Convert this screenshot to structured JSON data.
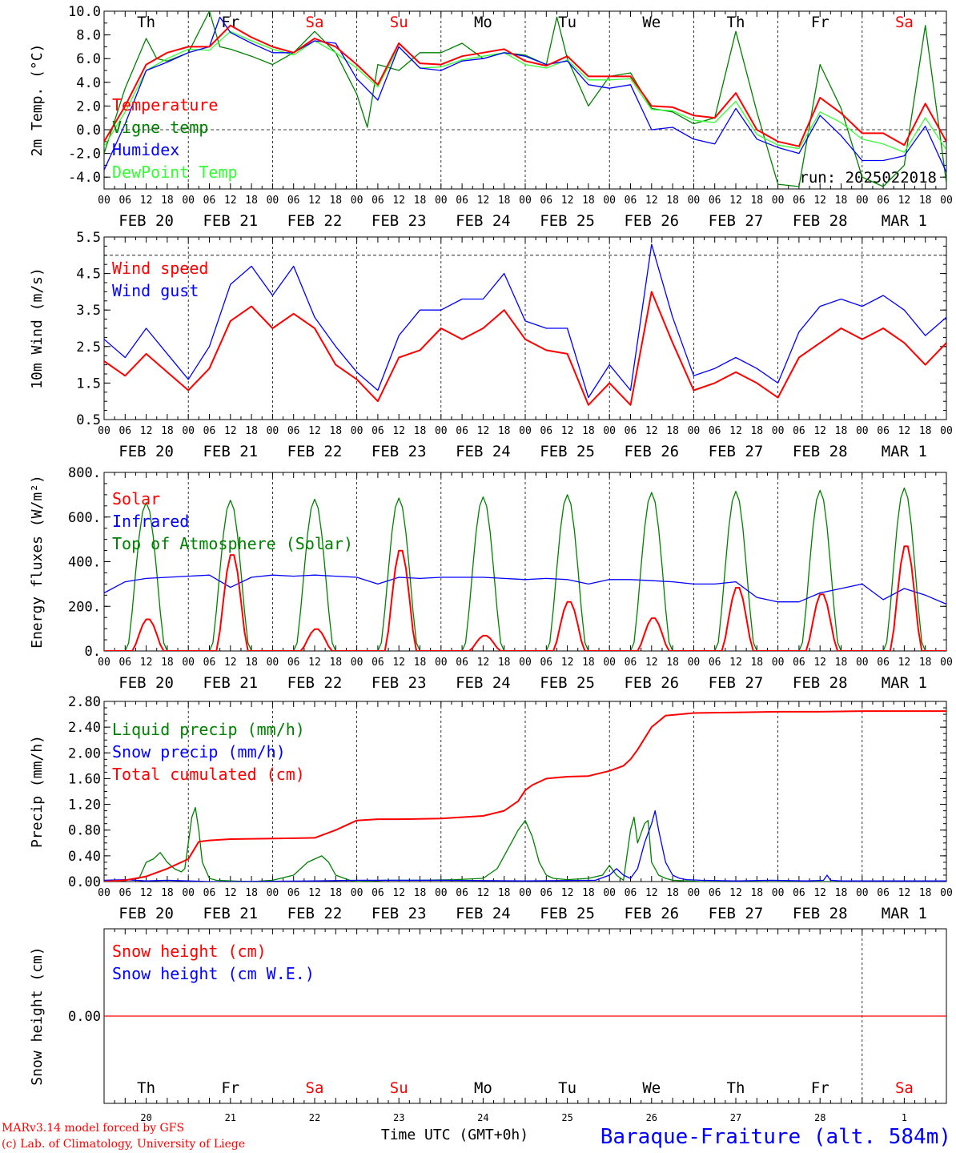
{
  "x_axis": {
    "hour_labels": [
      "00",
      "06",
      "12",
      "18"
    ],
    "final_hour_label": "00",
    "date_labels": [
      "FEB 20",
      "FEB 21",
      "FEB 22",
      "FEB 23",
      "FEB 24",
      "FEB 25",
      "FEB 26",
      "FEB 27",
      "FEB 28",
      "MAR  1"
    ],
    "weekday_labels": [
      "Th",
      "Fr",
      "Sa",
      "Su",
      "Mo",
      "Tu",
      "We",
      "Th",
      "Fr",
      "Sa"
    ],
    "weekend_flags": [
      false,
      false,
      true,
      true,
      false,
      false,
      false,
      false,
      false,
      true
    ],
    "day_numbers": [
      "20",
      "21",
      "22",
      "23",
      "24",
      "25",
      "26",
      "27",
      "28",
      "1"
    ],
    "title": "Time UTC (GMT+0h)"
  },
  "footer": {
    "model_credit": "MARv3.14 model forced by GFS",
    "lab_credit": "(c) Lab. of Climatology, University of Liege",
    "station_title": "Baraque-Fraiture (alt. 584m)"
  },
  "colors": {
    "red": "#ff0000",
    "green": "#008000",
    "blue": "#0000ff",
    "lightgreen": "#33ff33",
    "weekend": "#ff0000"
  },
  "chart_data": [
    {
      "type": "line",
      "ylabel": "2m Temp. (°C)",
      "ylim": [
        -5,
        10
      ],
      "yticks": [
        "10.0",
        "8.0",
        "6.0",
        "4.0",
        "2.0",
        "0.0",
        "-2.0",
        "-4.0"
      ],
      "ytick_values": [
        10,
        8,
        6,
        4,
        2,
        0,
        -2,
        -4
      ],
      "annotation": "run: 2025022018",
      "x_unit": "hours since FEB 20 00 UTC",
      "series": [
        {
          "name": "Temperature",
          "color": "red",
          "x": [
            0,
            6,
            12,
            18,
            24,
            30,
            36,
            42,
            48,
            54,
            60,
            66,
            72,
            78,
            84,
            90,
            96,
            102,
            108,
            114,
            120,
            126,
            132,
            138,
            144,
            150,
            156,
            162,
            168,
            174,
            180,
            186,
            192,
            198,
            204,
            210,
            216,
            222,
            228,
            234,
            240
          ],
          "y": [
            -1,
            2,
            5.5,
            6.5,
            7,
            7,
            8.8,
            7.8,
            7,
            6.5,
            7.7,
            7,
            5.5,
            3.8,
            7.3,
            5.6,
            5.5,
            6.2,
            6.5,
            6.8,
            5.8,
            5.4,
            6.2,
            4.5,
            4.5,
            4.5,
            2,
            1.9,
            1.2,
            1.0,
            3.1,
            0,
            -1,
            -1.4,
            2.7,
            1.4,
            -0.3,
            -0.3,
            -1.3,
            2.2,
            -1
          ]
        },
        {
          "name": "Vigne temp",
          "color": "green",
          "x": [
            0,
            6,
            12,
            15,
            18,
            24,
            30,
            33,
            36,
            42,
            48,
            54,
            60,
            66,
            72,
            75,
            78,
            84,
            90,
            96,
            102,
            108,
            114,
            120,
            126,
            129,
            132,
            138,
            144,
            150,
            156,
            162,
            168,
            174,
            180,
            186,
            192,
            198,
            204,
            210,
            216,
            222,
            228,
            234,
            240
          ],
          "y": [
            -2,
            3.5,
            7.7,
            6,
            5.8,
            6.5,
            10,
            7,
            6.8,
            6.2,
            5.5,
            6.5,
            8.3,
            6.5,
            3,
            0.2,
            5.5,
            5,
            6.5,
            6.5,
            7.3,
            6,
            6.5,
            6.3,
            5.5,
            9.5,
            6,
            2,
            4.5,
            4.8,
            1.8,
            1.5,
            0.5,
            1,
            8.3,
            1.5,
            -4.6,
            -4.8,
            5.5,
            1.8,
            -4,
            -4.8,
            -3,
            8.8,
            -4.5
          ]
        },
        {
          "name": "Humidex",
          "color": "blue",
          "x": [
            0,
            6,
            12,
            18,
            24,
            30,
            33,
            36,
            42,
            48,
            54,
            60,
            66,
            72,
            78,
            84,
            90,
            96,
            102,
            108,
            114,
            120,
            126,
            132,
            138,
            144,
            150,
            156,
            162,
            168,
            174,
            180,
            186,
            192,
            198,
            204,
            210,
            216,
            222,
            228,
            234,
            240
          ],
          "y": [
            -3.4,
            0.5,
            5,
            5.7,
            6.5,
            7,
            9.5,
            8.2,
            7.3,
            6.5,
            6.5,
            7.5,
            7.3,
            4.3,
            2.5,
            7,
            5.2,
            5,
            5.8,
            6,
            6.5,
            6.2,
            5.5,
            5.8,
            3.8,
            3.5,
            3.8,
            0,
            0.2,
            -0.8,
            -1.2,
            1.8,
            -0.8,
            -1.5,
            -2,
            1.2,
            -0.5,
            -2.6,
            -2.6,
            -2.2,
            0.3,
            -3.6
          ]
        },
        {
          "name": "DewPoint Temp",
          "color": "lightgreen",
          "x": [
            0,
            6,
            12,
            18,
            24,
            30,
            36,
            42,
            48,
            54,
            60,
            66,
            72,
            78,
            84,
            90,
            96,
            102,
            108,
            114,
            120,
            126,
            132,
            138,
            144,
            150,
            156,
            162,
            168,
            174,
            180,
            186,
            192,
            198,
            204,
            210,
            216,
            222,
            228,
            234,
            240
          ],
          "y": [
            -1.4,
            1.5,
            5,
            6,
            6.8,
            6.7,
            8.3,
            7.5,
            6.8,
            6.3,
            7.5,
            6.5,
            5.2,
            3.6,
            7,
            5.2,
            5.3,
            5.9,
            6.2,
            6.5,
            5.5,
            5.2,
            5.9,
            4.2,
            4.2,
            4.3,
            1.7,
            1.6,
            0.8,
            0.6,
            2.4,
            -0.4,
            -1.3,
            -1.6,
            1.5,
            0.6,
            -0.8,
            -1.2,
            -1.9,
            1.0,
            -1.7
          ]
        }
      ]
    },
    {
      "type": "line",
      "ylabel": "10m Wind (m/s)",
      "ylim": [
        0.5,
        5.5
      ],
      "yticks": [
        "5.5",
        "4.5",
        "3.5",
        "2.5",
        "1.5",
        "0.5"
      ],
      "ytick_values": [
        5.5,
        4.5,
        3.5,
        2.5,
        1.5,
        0.5
      ],
      "dashed_line_y": 5.0,
      "series": [
        {
          "name": "Wind speed",
          "color": "red",
          "x": [
            0,
            6,
            12,
            18,
            24,
            30,
            36,
            42,
            48,
            54,
            60,
            66,
            72,
            78,
            84,
            90,
            96,
            102,
            108,
            114,
            120,
            126,
            132,
            138,
            144,
            150,
            156,
            162,
            168,
            174,
            180,
            186,
            192,
            198,
            204,
            210,
            216,
            222,
            228,
            234,
            240
          ],
          "y": [
            2.1,
            1.7,
            2.3,
            1.8,
            1.3,
            1.9,
            3.2,
            3.6,
            3.0,
            3.4,
            3.0,
            2.0,
            1.6,
            1.0,
            2.2,
            2.4,
            3.0,
            2.7,
            3.0,
            3.5,
            2.7,
            2.4,
            2.3,
            0.9,
            1.5,
            0.9,
            4.0,
            2.6,
            1.3,
            1.5,
            1.8,
            1.5,
            1.1,
            2.2,
            2.6,
            3.0,
            2.7,
            3.0,
            2.6,
            2.0,
            2.6
          ]
        },
        {
          "name": "Wind gust",
          "color": "blue",
          "x": [
            0,
            6,
            12,
            18,
            24,
            30,
            36,
            42,
            48,
            54,
            60,
            66,
            72,
            78,
            84,
            90,
            96,
            102,
            108,
            114,
            120,
            126,
            132,
            138,
            144,
            150,
            156,
            162,
            168,
            174,
            180,
            186,
            192,
            198,
            204,
            210,
            216,
            222,
            228,
            234,
            240
          ],
          "y": [
            2.7,
            2.2,
            3.0,
            2.3,
            1.6,
            2.5,
            4.2,
            4.7,
            3.9,
            4.7,
            3.3,
            2.5,
            1.8,
            1.3,
            2.8,
            3.5,
            3.5,
            3.8,
            3.8,
            4.5,
            3.2,
            3.0,
            3.0,
            1.1,
            2.0,
            1.3,
            5.3,
            3.3,
            1.7,
            1.9,
            2.2,
            1.9,
            1.5,
            2.9,
            3.6,
            3.8,
            3.6,
            3.9,
            3.5,
            2.8,
            3.3
          ]
        }
      ]
    },
    {
      "type": "line",
      "ylabel": "Energy fluxes (W/m²)",
      "ylim": [
        0,
        800
      ],
      "yticks": [
        "800.",
        "600.",
        "400.",
        "200.",
        "0."
      ],
      "ytick_values": [
        800,
        600,
        400,
        200,
        0
      ],
      "series": [
        {
          "name": "Solar",
          "color": "red",
          "peaks": [
            145,
            440,
            100,
            460,
            70,
            225,
            150,
            290,
            260,
            480
          ]
        },
        {
          "name": "Infrared",
          "color": "blue",
          "x": [
            0,
            6,
            12,
            18,
            24,
            30,
            36,
            42,
            48,
            54,
            60,
            66,
            72,
            78,
            84,
            90,
            96,
            102,
            108,
            114,
            120,
            126,
            132,
            138,
            144,
            150,
            156,
            162,
            168,
            174,
            180,
            186,
            192,
            198,
            204,
            210,
            216,
            222,
            228,
            234,
            240
          ],
          "y": [
            260,
            310,
            325,
            330,
            335,
            340,
            285,
            330,
            340,
            335,
            340,
            335,
            330,
            300,
            330,
            325,
            330,
            330,
            330,
            325,
            320,
            325,
            320,
            300,
            320,
            320,
            315,
            310,
            300,
            300,
            310,
            240,
            220,
            220,
            260,
            280,
            300,
            230,
            280,
            250,
            210
          ]
        },
        {
          "name": "Top of Atmosphere (Solar)",
          "color": "green",
          "peaks": [
            665,
            675,
            680,
            685,
            690,
            700,
            710,
            715,
            720,
            730
          ]
        }
      ]
    },
    {
      "type": "line",
      "ylabel": "Precip (mm/h)",
      "ylim": [
        0,
        2.8
      ],
      "yticks": [
        "2.80",
        "2.40",
        "2.00",
        "1.60",
        "1.20",
        "0.80",
        "0.40",
        "0.00"
      ],
      "ytick_values": [
        2.8,
        2.4,
        2.0,
        1.6,
        1.2,
        0.8,
        0.4,
        0.0
      ],
      "series": [
        {
          "name": "Liquid precip (mm/h)",
          "color": "green",
          "x": [
            0,
            6,
            10,
            12,
            14,
            16,
            18,
            20,
            22,
            23,
            24,
            25,
            26,
            27,
            28,
            30,
            32,
            36,
            42,
            48,
            54,
            58,
            60,
            62,
            64,
            66,
            70,
            72,
            80,
            90,
            100,
            108,
            112,
            114,
            116,
            118,
            120,
            122,
            124,
            126,
            128,
            132,
            138,
            142,
            144,
            146,
            148,
            150,
            151,
            152,
            154,
            155,
            156,
            158,
            160,
            162,
            166,
            170,
            180,
            190,
            200,
            205,
            210,
            220,
            230,
            240
          ],
          "y": [
            0,
            0.02,
            0.05,
            0.3,
            0.35,
            0.45,
            0.3,
            0.2,
            0.15,
            0.2,
            0.6,
            1.0,
            1.15,
            0.8,
            0.3,
            0.05,
            0.02,
            0.01,
            0,
            0.02,
            0.1,
            0.3,
            0.35,
            0.4,
            0.3,
            0.1,
            0.02,
            0,
            0.02,
            0.02,
            0.03,
            0.05,
            0.2,
            0.4,
            0.6,
            0.8,
            0.95,
            0.7,
            0.3,
            0.1,
            0.05,
            0.03,
            0.05,
            0.1,
            0.25,
            0.1,
            0.02,
            0.8,
            1.0,
            0.6,
            0.9,
            0.95,
            0.3,
            0.1,
            0.05,
            0.02,
            0.01,
            0,
            0,
            0,
            0,
            0,
            0,
            0,
            0,
            0
          ]
        },
        {
          "name": "Snow precip (mm/h)",
          "color": "blue",
          "x": [
            0,
            6,
            12,
            18,
            24,
            30,
            36,
            60,
            72,
            96,
            120,
            140,
            144,
            146,
            148,
            150,
            152,
            154,
            156,
            157,
            158,
            160,
            162,
            164,
            166,
            170,
            180,
            190,
            200,
            205,
            206,
            207,
            210,
            220,
            230,
            240
          ],
          "y": [
            0.02,
            0.03,
            0.01,
            0.02,
            0.01,
            0,
            0,
            0.01,
            0.02,
            0.02,
            0.01,
            0.02,
            0.1,
            0.2,
            0.1,
            0.05,
            0.2,
            0.6,
            0.9,
            1.1,
            0.8,
            0.3,
            0.1,
            0.05,
            0.03,
            0.02,
            0.01,
            0.02,
            0.01,
            0.02,
            0.1,
            0.02,
            0.01,
            0.01,
            0.01,
            0.01
          ]
        },
        {
          "name": "Total cumulated (cm)",
          "color": "red",
          "x": [
            0,
            6,
            12,
            18,
            24,
            27,
            30,
            36,
            48,
            60,
            66,
            72,
            78,
            84,
            96,
            108,
            114,
            118,
            120,
            122,
            126,
            132,
            138,
            144,
            148,
            150,
            152,
            156,
            160,
            168,
            180,
            192,
            204,
            216,
            228,
            240
          ],
          "y": [
            0,
            0.02,
            0.08,
            0.2,
            0.35,
            0.62,
            0.64,
            0.66,
            0.67,
            0.68,
            0.8,
            0.95,
            0.97,
            0.97,
            0.98,
            1.02,
            1.1,
            1.25,
            1.42,
            1.5,
            1.6,
            1.63,
            1.64,
            1.72,
            1.8,
            1.9,
            2.05,
            2.4,
            2.58,
            2.62,
            2.63,
            2.64,
            2.64,
            2.65,
            2.65,
            2.65
          ]
        }
      ]
    },
    {
      "type": "line",
      "ylabel": "Snow height (cm)",
      "ylim": [
        -1,
        1
      ],
      "yticks": [
        "0.00"
      ],
      "ytick_values": [
        0
      ],
      "series": [
        {
          "name": "Snow height (cm)",
          "color": "red",
          "x": [
            0,
            240
          ],
          "y": [
            0,
            0
          ]
        },
        {
          "name": "Snow height (cm W.E.)",
          "color": "blue",
          "x": [],
          "y": []
        }
      ]
    }
  ]
}
